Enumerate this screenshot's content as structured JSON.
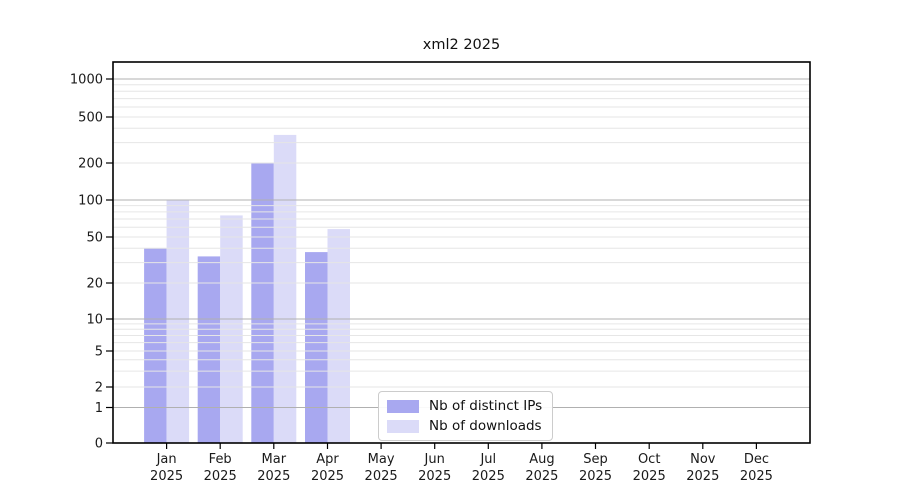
{
  "chart_data": {
    "type": "bar",
    "title": "xml2 2025",
    "xlabel": "",
    "ylabel": "",
    "year_label": "2025",
    "categories": [
      "Jan",
      "Feb",
      "Mar",
      "Apr",
      "May",
      "Jun",
      "Jul",
      "Aug",
      "Sep",
      "Oct",
      "Nov",
      "Dec"
    ],
    "series": [
      {
        "name": "Nb of distinct IPs",
        "color": "#a8a8f0",
        "values": [
          40,
          34,
          200,
          37,
          0,
          0,
          0,
          0,
          0,
          0,
          0,
          0
        ]
      },
      {
        "name": "Nb of downloads",
        "color": "#dbdbf8",
        "values": [
          100,
          75,
          350,
          58,
          0,
          0,
          0,
          0,
          0,
          0,
          0,
          0
        ]
      }
    ],
    "y_ticks": [
      0,
      1,
      2,
      5,
      10,
      20,
      50,
      100,
      200,
      500,
      1000
    ],
    "y_scale": "log-like",
    "ylim": [
      0,
      1400
    ],
    "grid": "on",
    "grid_major_values": [
      1,
      10,
      100,
      1000
    ],
    "grid_minor_step": "2-9 per decade",
    "legend_position": "inside-bottom-center",
    "colors": {
      "major_grid": "#b0b0b0",
      "minor_grid": "#e6e6e6",
      "axis_frame": "#000000",
      "background": "#ffffff",
      "text": "#1a1a1a"
    }
  }
}
